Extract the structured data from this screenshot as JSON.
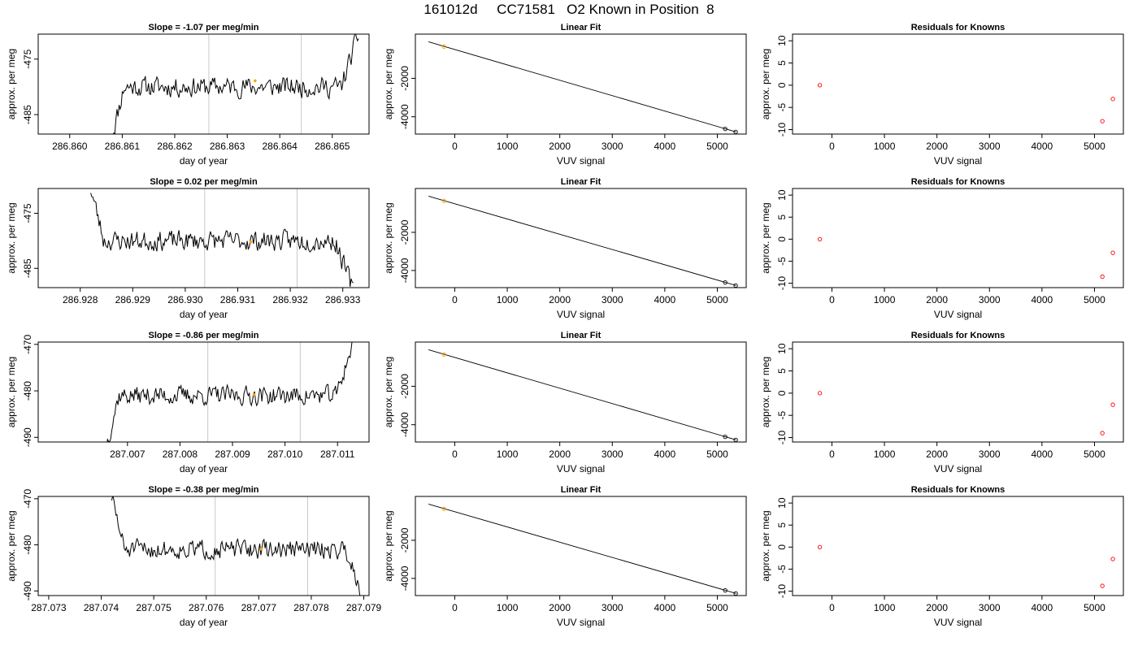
{
  "page_title": "161012d     CC71581   O2 Known in Position  8",
  "chart_data": [
    {
      "row": 1,
      "type": "line",
      "title": "Slope =  -1.07  per meg/min",
      "xlabel": "day of year",
      "ylabel": "approx. per meg",
      "xlim": [
        286.8594,
        286.8657
      ],
      "ylim": [
        -488.5,
        -470.5
      ],
      "xticks": [
        "286.860",
        "286.861",
        "286.862",
        "286.863",
        "286.864",
        "286.865"
      ],
      "xtick_values": [
        286.86,
        286.861,
        286.862,
        286.863,
        286.864,
        286.865
      ],
      "yticks": [
        "-485",
        "-475"
      ],
      "ytick_values": [
        -485,
        -475
      ],
      "signal": {
        "x_start": 286.8608,
        "x_end": 286.8655,
        "start": -489,
        "end": -470.5,
        "level": -480,
        "noise": 1.6,
        "step": 2e-05,
        "seed": 11
      },
      "vlines": [
        286.86265,
        286.86441
      ],
      "mean_marker": {
        "x": 286.86353,
        "y": -478.9
      },
      "color_line": "#000000",
      "color_vline": "#c8c8c8",
      "color_marker": "#ffa500"
    },
    {
      "row": 1,
      "type": "line",
      "title": "Linear Fit",
      "xlabel": "VUV signal",
      "ylabel": "approx. per meg",
      "xlim": [
        -750,
        5550
      ],
      "ylim": [
        -4900,
        300
      ],
      "xticks": [
        "0",
        "1000",
        "2000",
        "3000",
        "4000",
        "5000"
      ],
      "xtick_values": [
        0,
        1000,
        2000,
        3000,
        4000,
        5000
      ],
      "yticks": [
        "-4000",
        "-2000"
      ],
      "ytick_values": [
        -4000,
        -2000
      ],
      "fit_line": {
        "x": [
          -500,
          5360
        ],
        "y": [
          -100,
          -4790
        ]
      },
      "points": [
        {
          "x": -205,
          "y": -350,
          "color": "#ffa500"
        },
        {
          "x": 5150,
          "y": -4630,
          "color": "#000000"
        },
        {
          "x": 5350,
          "y": -4790,
          "color": "#000000"
        }
      ]
    },
    {
      "row": 1,
      "type": "scatter",
      "title": "Residuals for Knowns",
      "xlabel": "VUV signal",
      "ylabel": "approx. per meg",
      "xlim": [
        -750,
        5550
      ],
      "ylim": [
        -11,
        11.5
      ],
      "xticks": [
        "0",
        "1000",
        "2000",
        "3000",
        "4000",
        "5000"
      ],
      "xtick_values": [
        0,
        1000,
        2000,
        3000,
        4000,
        5000
      ],
      "yticks": [
        "-10",
        "-5",
        "0",
        "5",
        "10"
      ],
      "ytick_values": [
        -10,
        -5,
        0,
        5,
        10
      ],
      "points": [
        {
          "x": -230,
          "y": 0
        },
        {
          "x": 5150,
          "y": -8.1
        },
        {
          "x": 5350,
          "y": -3.1
        }
      ],
      "color_marker": "#ff0000"
    },
    {
      "row": 2,
      "type": "line",
      "title": "Slope =  0.02  per meg/min",
      "xlabel": "day of year",
      "ylabel": "approx. per meg",
      "xlim": [
        286.9272,
        286.9335
      ],
      "ylim": [
        -488.5,
        -470.5
      ],
      "xticks": [
        "286.928",
        "286.929",
        "286.930",
        "286.931",
        "286.932",
        "286.933"
      ],
      "xtick_values": [
        286.928,
        286.929,
        286.93,
        286.931,
        286.932,
        286.933
      ],
      "yticks": [
        "-485",
        "-475"
      ],
      "ytick_values": [
        -485,
        -475
      ],
      "signal": {
        "x_start": 286.9282,
        "x_end": 286.9332,
        "start": -470.5,
        "end": -489,
        "level": -480,
        "noise": 1.6,
        "step": 2e-05,
        "seed": 23
      },
      "vlines": [
        286.93037,
        286.93213
      ],
      "mean_marker": {
        "x": 286.93125,
        "y": -480.2
      },
      "color_line": "#000000",
      "color_vline": "#c8c8c8",
      "color_marker": "#ffa500"
    },
    {
      "row": 2,
      "type": "line",
      "title": "Linear Fit",
      "xlabel": "VUV signal",
      "ylabel": "approx. per meg",
      "xlim": [
        -750,
        5550
      ],
      "ylim": [
        -4900,
        300
      ],
      "xticks": [
        "0",
        "1000",
        "2000",
        "3000",
        "4000",
        "5000"
      ],
      "xtick_values": [
        0,
        1000,
        2000,
        3000,
        4000,
        5000
      ],
      "yticks": [
        "-4000",
        "-2000"
      ],
      "ytick_values": [
        -4000,
        -2000
      ],
      "fit_line": {
        "x": [
          -500,
          5360
        ],
        "y": [
          -100,
          -4790
        ]
      },
      "points": [
        {
          "x": -205,
          "y": -350,
          "color": "#ffa500"
        },
        {
          "x": 5150,
          "y": -4630,
          "color": "#000000"
        },
        {
          "x": 5350,
          "y": -4790,
          "color": "#000000"
        }
      ]
    },
    {
      "row": 2,
      "type": "scatter",
      "title": "Residuals for Knowns",
      "xlabel": "VUV signal",
      "ylabel": "approx. per meg",
      "xlim": [
        -750,
        5550
      ],
      "ylim": [
        -11,
        11.5
      ],
      "xticks": [
        "0",
        "1000",
        "2000",
        "3000",
        "4000",
        "5000"
      ],
      "xtick_values": [
        0,
        1000,
        2000,
        3000,
        4000,
        5000
      ],
      "yticks": [
        "-10",
        "-5",
        "0",
        "5",
        "10"
      ],
      "ytick_values": [
        -10,
        -5,
        0,
        5,
        10
      ],
      "points": [
        {
          "x": -230,
          "y": 0
        },
        {
          "x": 5150,
          "y": -8.5
        },
        {
          "x": 5350,
          "y": -3.1
        }
      ],
      "color_marker": "#ff0000"
    },
    {
      "row": 3,
      "type": "line",
      "title": "Slope =  -0.86  per meg/min",
      "xlabel": "day of year",
      "ylabel": "approx. per meg",
      "xlim": [
        287.0053,
        287.0116
      ],
      "ylim": [
        -491,
        -469.5
      ],
      "xticks": [
        "287.007",
        "287.008",
        "287.009",
        "287.010",
        "287.011"
      ],
      "xtick_values": [
        287.007,
        287.008,
        287.009,
        287.01,
        287.011
      ],
      "yticks": [
        "-490",
        "-480",
        "-470"
      ],
      "ytick_values": [
        -490,
        -480,
        -470
      ],
      "signal": {
        "x_start": 287.0066,
        "x_end": 287.0113,
        "start": -491.5,
        "end": -469.5,
        "level": -481,
        "noise": 1.8,
        "step": 2e-05,
        "seed": 37
      },
      "vlines": [
        287.00853,
        287.01029
      ],
      "mean_marker": {
        "x": 287.00941,
        "y": -480.8
      },
      "color_line": "#000000",
      "color_vline": "#c8c8c8",
      "color_marker": "#ffa500"
    },
    {
      "row": 3,
      "type": "line",
      "title": "Linear Fit",
      "xlabel": "VUV signal",
      "ylabel": "approx. per meg",
      "xlim": [
        -750,
        5550
      ],
      "ylim": [
        -4900,
        300
      ],
      "xticks": [
        "0",
        "1000",
        "2000",
        "3000",
        "4000",
        "5000"
      ],
      "xtick_values": [
        0,
        1000,
        2000,
        3000,
        4000,
        5000
      ],
      "yticks": [
        "-4000",
        "-2000"
      ],
      "ytick_values": [
        -4000,
        -2000
      ],
      "fit_line": {
        "x": [
          -500,
          5360
        ],
        "y": [
          -100,
          -4790
        ]
      },
      "points": [
        {
          "x": -205,
          "y": -350,
          "color": "#ffa500"
        },
        {
          "x": 5150,
          "y": -4630,
          "color": "#000000"
        },
        {
          "x": 5350,
          "y": -4790,
          "color": "#000000"
        }
      ]
    },
    {
      "row": 3,
      "type": "scatter",
      "title": "Residuals for Knowns",
      "xlabel": "VUV signal",
      "ylabel": "approx. per meg",
      "xlim": [
        -750,
        5550
      ],
      "ylim": [
        -11,
        11.5
      ],
      "xticks": [
        "0",
        "1000",
        "2000",
        "3000",
        "4000",
        "5000"
      ],
      "xtick_values": [
        0,
        1000,
        2000,
        3000,
        4000,
        5000
      ],
      "yticks": [
        "-10",
        "-5",
        "0",
        "5",
        "10"
      ],
      "ytick_values": [
        -10,
        -5,
        0,
        5,
        10
      ],
      "points": [
        {
          "x": -230,
          "y": 0
        },
        {
          "x": 5150,
          "y": -9.0
        },
        {
          "x": 5350,
          "y": -2.6
        }
      ],
      "color_marker": "#ff0000"
    },
    {
      "row": 4,
      "type": "line",
      "title": "Slope =  -0.38  per meg/min",
      "xlabel": "day of year",
      "ylabel": "approx. per meg",
      "xlim": [
        287.0728,
        287.0791
      ],
      "ylim": [
        -491,
        -469.5
      ],
      "xticks": [
        "287.073",
        "287.074",
        "287.075",
        "287.076",
        "287.077",
        "287.078",
        "287.079"
      ],
      "xtick_values": [
        287.073,
        287.074,
        287.075,
        287.076,
        287.077,
        287.078,
        287.079
      ],
      "yticks": [
        "-490",
        "-480",
        "-470"
      ],
      "ytick_values": [
        -490,
        -480,
        -470
      ],
      "signal": {
        "x_start": 287.0742,
        "x_end": 287.079,
        "start": -469.5,
        "end": -491.5,
        "level": -481,
        "noise": 1.8,
        "step": 2e-05,
        "seed": 51
      },
      "vlines": [
        287.07617,
        287.07793
      ],
      "mean_marker": {
        "x": 287.07705,
        "y": -480.9
      },
      "color_line": "#000000",
      "color_vline": "#c8c8c8",
      "color_marker": "#ffa500"
    },
    {
      "row": 4,
      "type": "line",
      "title": "Linear Fit",
      "xlabel": "VUV signal",
      "ylabel": "approx. per meg",
      "xlim": [
        -750,
        5550
      ],
      "ylim": [
        -4900,
        300
      ],
      "xticks": [
        "0",
        "1000",
        "2000",
        "3000",
        "4000",
        "5000"
      ],
      "xtick_values": [
        0,
        1000,
        2000,
        3000,
        4000,
        5000
      ],
      "yticks": [
        "-4000",
        "-2000"
      ],
      "ytick_values": [
        -4000,
        -2000
      ],
      "fit_line": {
        "x": [
          -500,
          5360
        ],
        "y": [
          -100,
          -4790
        ]
      },
      "points": [
        {
          "x": -205,
          "y": -350,
          "color": "#ffa500"
        },
        {
          "x": 5150,
          "y": -4630,
          "color": "#000000"
        },
        {
          "x": 5350,
          "y": -4790,
          "color": "#000000"
        }
      ]
    },
    {
      "row": 4,
      "type": "scatter",
      "title": "Residuals for Knowns",
      "xlabel": "VUV signal",
      "ylabel": "approx. per meg",
      "xlim": [
        -750,
        5550
      ],
      "ylim": [
        -11,
        11.5
      ],
      "xticks": [
        "0",
        "1000",
        "2000",
        "3000",
        "4000",
        "5000"
      ],
      "xtick_values": [
        0,
        1000,
        2000,
        3000,
        4000,
        5000
      ],
      "yticks": [
        "-10",
        "-5",
        "0",
        "5",
        "10"
      ],
      "ytick_values": [
        -10,
        -5,
        0,
        5,
        10
      ],
      "points": [
        {
          "x": -230,
          "y": 0
        },
        {
          "x": 5150,
          "y": -8.8
        },
        {
          "x": 5350,
          "y": -2.7
        }
      ],
      "color_marker": "#ff0000"
    }
  ]
}
